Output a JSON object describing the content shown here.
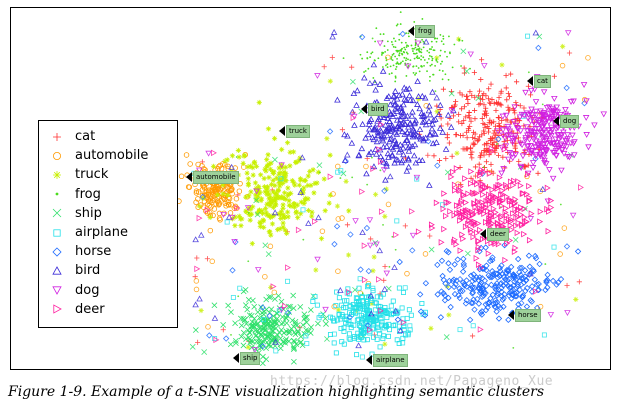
{
  "chart_data": {
    "type": "scatter",
    "title": "",
    "xlabel": "",
    "ylabel": "",
    "grid": false,
    "legend_position": "left",
    "series": [
      {
        "name": "cat",
        "color": "#ff3030",
        "marker": "plus"
      },
      {
        "name": "automobile",
        "color": "#ff9a00",
        "marker": "circle"
      },
      {
        "name": "truck",
        "color": "#c8f000",
        "marker": "star"
      },
      {
        "name": "frog",
        "color": "#4bdc1e",
        "marker": "dot"
      },
      {
        "name": "ship",
        "color": "#2ee06a",
        "marker": "x"
      },
      {
        "name": "airplane",
        "color": "#22e0e8",
        "marker": "square"
      },
      {
        "name": "horse",
        "color": "#1e6bff",
        "marker": "diamond"
      },
      {
        "name": "bird",
        "color": "#3b2bd8",
        "marker": "triangle-up"
      },
      {
        "name": "dog",
        "color": "#d020e0",
        "marker": "triangle-down"
      },
      {
        "name": "deer",
        "color": "#ff20a0",
        "marker": "triangle-right"
      }
    ],
    "cluster_labels": [
      "frog",
      "cat",
      "bird",
      "dog",
      "truck",
      "automobile",
      "deer",
      "horse",
      "ship",
      "airplane"
    ]
  },
  "caption": "Figure 1-9. Example of a t-SNE visualization highlighting semantic clusters",
  "watermark": "https://blog.csdn.net/Papageno_Xue"
}
